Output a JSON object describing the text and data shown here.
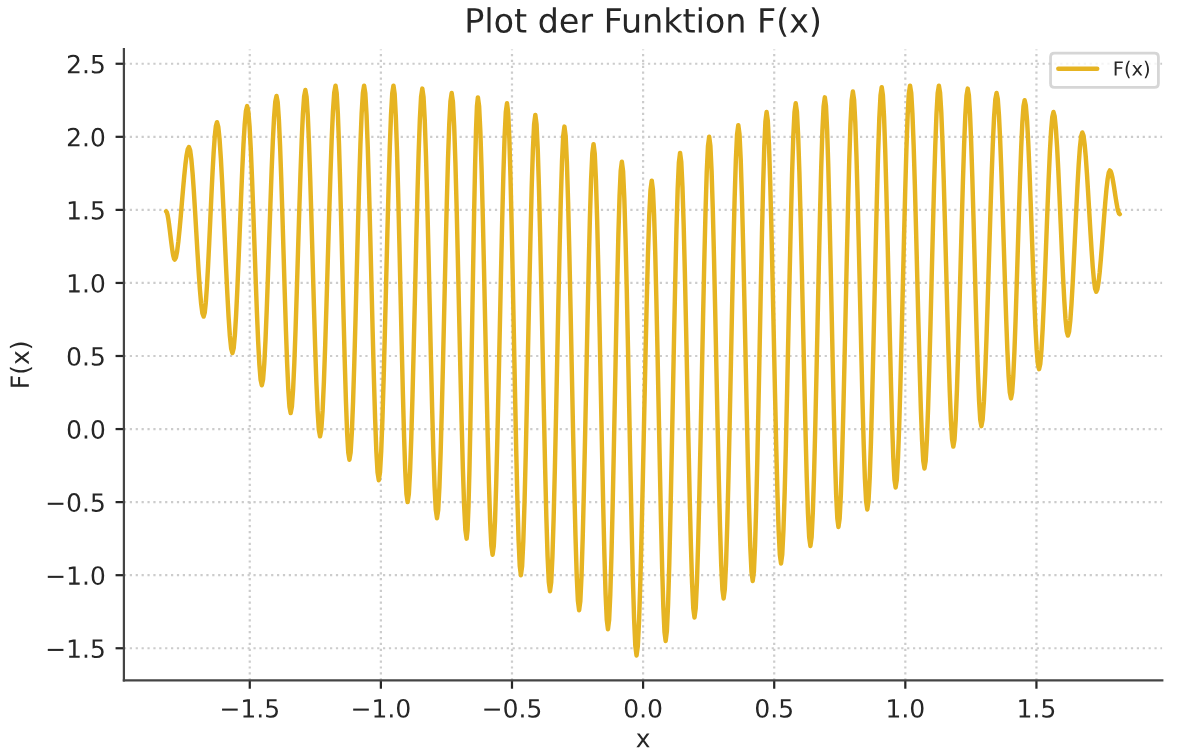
{
  "chart_data": {
    "type": "line",
    "title": "Plot der Funktion F(x)",
    "xlabel": "x",
    "ylabel": "F(x)",
    "xlim": [
      -1.98,
      1.98
    ],
    "ylim": [
      -1.72,
      2.6
    ],
    "xticks": [
      {
        "value": -1.5,
        "label": "−1.5"
      },
      {
        "value": -1.0,
        "label": "−1.0"
      },
      {
        "value": -0.5,
        "label": "−0.5"
      },
      {
        "value": 0.0,
        "label": "0.0"
      },
      {
        "value": 0.5,
        "label": "0.5"
      },
      {
        "value": 1.0,
        "label": "1.0"
      },
      {
        "value": 1.5,
        "label": "1.5"
      }
    ],
    "yticks": [
      {
        "value": -1.5,
        "label": "−1.5"
      },
      {
        "value": -1.0,
        "label": "−1.0"
      },
      {
        "value": -0.5,
        "label": "−0.5"
      },
      {
        "value": 0.0,
        "label": "0.0"
      },
      {
        "value": 0.5,
        "label": "0.5"
      },
      {
        "value": 1.0,
        "label": "1.0"
      },
      {
        "value": 1.5,
        "label": "1.5"
      },
      {
        "value": 2.0,
        "label": "2.0"
      },
      {
        "value": 2.5,
        "label": "2.5"
      }
    ],
    "grid": true,
    "legend": "top right",
    "line_style": "solid",
    "series": [
      {
        "name": "F(x)",
        "color": "#e6b422",
        "x": [
          -1.819,
          -1.786,
          -1.732,
          -1.676,
          -1.625,
          -1.566,
          -1.51,
          -1.454,
          -1.398,
          -1.344,
          -1.288,
          -1.232,
          -1.173,
          -1.12,
          -1.064,
          -1.008,
          -0.952,
          -0.898,
          -0.842,
          -0.786,
          -0.73,
          -0.673,
          -0.63,
          -0.574,
          -0.519,
          -0.466,
          -0.411,
          -0.355,
          -0.3,
          -0.244,
          -0.189,
          -0.134,
          -0.081,
          -0.025,
          0.033,
          0.086,
          0.141,
          0.196,
          0.252,
          0.307,
          0.363,
          0.418,
          0.471,
          0.526,
          0.582,
          0.638,
          0.693,
          0.745,
          0.8,
          0.855,
          0.91,
          0.963,
          1.018,
          1.073,
          1.128,
          1.183,
          1.238,
          1.29,
          1.348,
          1.403,
          1.455,
          1.51,
          1.565,
          1.62,
          1.675,
          1.728,
          1.78,
          1.818
        ],
        "values": [
          1.49,
          1.16,
          1.93,
          0.77,
          2.1,
          0.52,
          2.21,
          0.3,
          2.28,
          0.11,
          2.32,
          -0.05,
          2.35,
          -0.21,
          2.35,
          -0.35,
          2.35,
          -0.5,
          2.33,
          -0.61,
          2.3,
          -0.75,
          2.27,
          -0.86,
          2.23,
          -1.0,
          2.15,
          -1.11,
          2.07,
          -1.24,
          1.95,
          -1.37,
          1.83,
          -1.55,
          1.7,
          -1.45,
          1.89,
          -1.29,
          2.0,
          -1.16,
          2.08,
          -1.04,
          2.17,
          -0.92,
          2.23,
          -0.8,
          2.27,
          -0.67,
          2.31,
          -0.55,
          2.34,
          -0.4,
          2.35,
          -0.27,
          2.35,
          -0.12,
          2.33,
          0.02,
          2.3,
          0.21,
          2.25,
          0.41,
          2.17,
          0.64,
          2.03,
          0.94,
          1.77,
          1.47
        ]
      }
    ]
  }
}
